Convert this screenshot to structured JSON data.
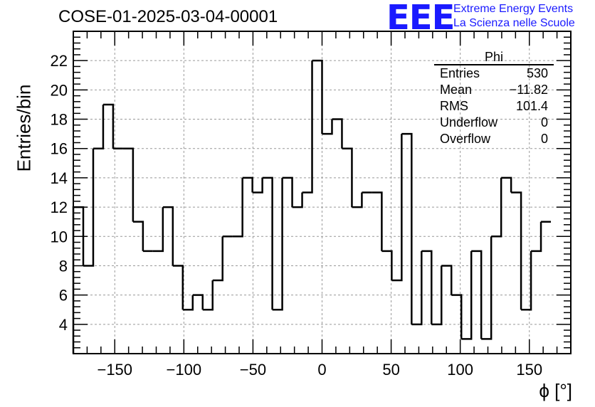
{
  "header": {
    "title": "COSE-01-2025-03-04-00001",
    "logo_text": "EEE",
    "logo_line1": "Extreme Energy Events",
    "logo_line2": "La Scienza nelle Scuole"
  },
  "stats_box": {
    "title": "Phi",
    "rows": [
      {
        "label": "Entries",
        "value": "530"
      },
      {
        "label": "Mean",
        "value": "−11.82"
      },
      {
        "label": "RMS",
        "value": "101.4"
      },
      {
        "label": "Underflow",
        "value": "0"
      },
      {
        "label": "Overflow",
        "value": "0"
      }
    ]
  },
  "chart_data": {
    "type": "histogram",
    "title": "COSE-01-2025-03-04-00001",
    "xlabel": "ϕ [°]",
    "ylabel": "Entries/bin",
    "xlim": [
      -180,
      180
    ],
    "ylim": [
      2,
      24
    ],
    "bin_width": 7.2,
    "xticks": [
      -150,
      -100,
      -50,
      0,
      50,
      100,
      150
    ],
    "xtick_labels": [
      "−150",
      "−100",
      "−50",
      "0",
      "50",
      "100",
      "150"
    ],
    "yticks": [
      4,
      6,
      8,
      10,
      12,
      14,
      16,
      18,
      20,
      22
    ],
    "yminor_step": 0.4,
    "xminor_step": 10,
    "grid": true,
    "values": [
      12,
      8,
      16,
      19,
      16,
      16,
      11,
      9,
      9,
      12,
      8,
      5,
      6,
      5,
      7,
      10,
      10,
      14,
      13,
      14,
      5,
      14,
      12,
      13,
      22,
      17,
      18,
      16,
      12,
      13,
      13,
      9,
      7,
      17,
      4,
      9,
      4,
      8,
      6,
      3,
      9,
      3,
      10,
      14,
      13,
      5,
      9,
      11
    ],
    "line_color": "#000000",
    "grid_color": "#999999"
  }
}
